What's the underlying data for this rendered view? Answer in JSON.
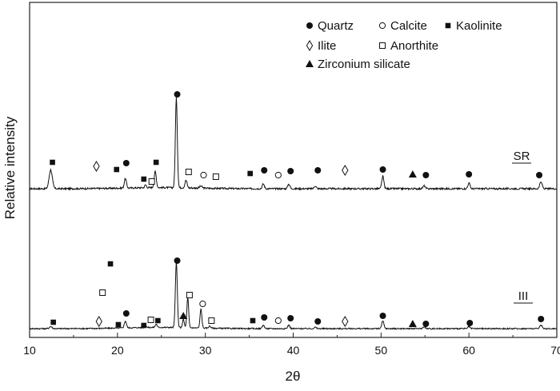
{
  "chart_data": {
    "type": "line",
    "xlabel": "2θ",
    "ylabel": "Relative intensity",
    "xlim": [
      10,
      70
    ],
    "x_ticks": [
      "10",
      "20",
      "30",
      "40",
      "50",
      "60",
      "70"
    ],
    "grid": false,
    "legend_position": "top-right",
    "legend": [
      {
        "name": "Quartz",
        "symbol": "filled-circle"
      },
      {
        "name": "Calcite",
        "symbol": "open-circle"
      },
      {
        "name": "Kaolinite",
        "symbol": "filled-square"
      },
      {
        "name": "Ilite",
        "symbol": "open-diamond"
      },
      {
        "name": "Anorthite",
        "symbol": "open-square"
      },
      {
        "name": "Zirconium silicate",
        "symbol": "filled-triangle"
      }
    ],
    "series": [
      {
        "name": "SR",
        "peaks": [
          {
            "x": 12.4,
            "h": 0.2,
            "w": 0.18
          },
          {
            "x": 20.9,
            "h": 0.1,
            "w": 0.12
          },
          {
            "x": 23.2,
            "h": 0.03,
            "w": 0.1
          },
          {
            "x": 24.3,
            "h": 0.17,
            "w": 0.12
          },
          {
            "x": 26.7,
            "h": 0.95,
            "w": 0.11
          },
          {
            "x": 27.8,
            "h": 0.08,
            "w": 0.12
          },
          {
            "x": 29.5,
            "h": 0.02,
            "w": 0.15
          },
          {
            "x": 36.6,
            "h": 0.05,
            "w": 0.12
          },
          {
            "x": 39.5,
            "h": 0.05,
            "w": 0.12
          },
          {
            "x": 42.5,
            "h": 0.03,
            "w": 0.12
          },
          {
            "x": 50.2,
            "h": 0.13,
            "w": 0.12
          },
          {
            "x": 54.9,
            "h": 0.03,
            "w": 0.12
          },
          {
            "x": 60.0,
            "h": 0.06,
            "w": 0.12
          },
          {
            "x": 68.2,
            "h": 0.07,
            "w": 0.14
          }
        ],
        "markers": [
          {
            "x": 12.6,
            "symbol": "filled-square"
          },
          {
            "x": 17.6,
            "symbol": "open-diamond"
          },
          {
            "x": 21.0,
            "symbol": "filled-circle"
          },
          {
            "x": 19.9,
            "symbol": "filled-square"
          },
          {
            "x": 23.0,
            "symbol": "filled-square"
          },
          {
            "x": 23.9,
            "symbol": "open-square"
          },
          {
            "x": 24.4,
            "symbol": "filled-square"
          },
          {
            "x": 26.8,
            "symbol": "filled-circle"
          },
          {
            "x": 28.1,
            "symbol": "open-square"
          },
          {
            "x": 29.8,
            "symbol": "open-circle"
          },
          {
            "x": 31.2,
            "symbol": "open-square"
          },
          {
            "x": 35.1,
            "symbol": "filled-square"
          },
          {
            "x": 36.7,
            "symbol": "filled-circle"
          },
          {
            "x": 38.3,
            "symbol": "open-circle"
          },
          {
            "x": 39.7,
            "symbol": "filled-circle"
          },
          {
            "x": 42.8,
            "symbol": "filled-circle"
          },
          {
            "x": 45.9,
            "symbol": "open-diamond"
          },
          {
            "x": 50.2,
            "symbol": "filled-circle"
          },
          {
            "x": 53.6,
            "symbol": "filled-triangle"
          },
          {
            "x": 55.1,
            "symbol": "filled-circle"
          },
          {
            "x": 60.0,
            "symbol": "filled-circle"
          },
          {
            "x": 68.0,
            "symbol": "filled-circle"
          }
        ]
      },
      {
        "name": "III",
        "peaks": [
          {
            "x": 12.4,
            "h": 0.03,
            "w": 0.15
          },
          {
            "x": 20.9,
            "h": 0.1,
            "w": 0.12
          },
          {
            "x": 23.2,
            "h": 0.03,
            "w": 0.1
          },
          {
            "x": 24.4,
            "h": 0.05,
            "w": 0.1
          },
          {
            "x": 26.7,
            "h": 0.95,
            "w": 0.11
          },
          {
            "x": 27.5,
            "h": 0.12,
            "w": 0.1
          },
          {
            "x": 28.0,
            "h": 0.44,
            "w": 0.1
          },
          {
            "x": 29.5,
            "h": 0.28,
            "w": 0.1
          },
          {
            "x": 30.5,
            "h": 0.03,
            "w": 0.12
          },
          {
            "x": 36.6,
            "h": 0.05,
            "w": 0.12
          },
          {
            "x": 39.5,
            "h": 0.05,
            "w": 0.12
          },
          {
            "x": 42.5,
            "h": 0.02,
            "w": 0.12
          },
          {
            "x": 50.2,
            "h": 0.11,
            "w": 0.12
          },
          {
            "x": 54.9,
            "h": 0.03,
            "w": 0.12
          },
          {
            "x": 60.0,
            "h": 0.03,
            "w": 0.12
          },
          {
            "x": 68.2,
            "h": 0.05,
            "w": 0.14
          }
        ],
        "markers": [
          {
            "x": 12.7,
            "symbol": "filled-square"
          },
          {
            "x": 17.9,
            "symbol": "open-diamond"
          },
          {
            "x": 18.3,
            "symbol": "open-square",
            "level": 1
          },
          {
            "x": 19.2,
            "symbol": "filled-square",
            "level": 2
          },
          {
            "x": 20.1,
            "symbol": "filled-square"
          },
          {
            "x": 21.0,
            "symbol": "filled-circle"
          },
          {
            "x": 23.0,
            "symbol": "filled-square"
          },
          {
            "x": 23.8,
            "symbol": "open-square"
          },
          {
            "x": 24.6,
            "symbol": "filled-square"
          },
          {
            "x": 26.8,
            "symbol": "filled-circle",
            "level": 3
          },
          {
            "x": 27.5,
            "symbol": "filled-triangle"
          },
          {
            "x": 28.2,
            "symbol": "open-square",
            "level": 1
          },
          {
            "x": 29.7,
            "symbol": "open-circle",
            "level": 1
          },
          {
            "x": 30.7,
            "symbol": "open-square"
          },
          {
            "x": 35.4,
            "symbol": "filled-square"
          },
          {
            "x": 36.7,
            "symbol": "filled-circle"
          },
          {
            "x": 38.3,
            "symbol": "open-circle"
          },
          {
            "x": 39.7,
            "symbol": "filled-circle"
          },
          {
            "x": 42.8,
            "symbol": "filled-circle"
          },
          {
            "x": 45.9,
            "symbol": "open-diamond"
          },
          {
            "x": 50.2,
            "symbol": "filled-circle"
          },
          {
            "x": 53.6,
            "symbol": "filled-triangle"
          },
          {
            "x": 55.1,
            "symbol": "filled-circle"
          },
          {
            "x": 60.1,
            "symbol": "filled-circle"
          },
          {
            "x": 68.2,
            "symbol": "filled-circle"
          }
        ]
      }
    ]
  }
}
